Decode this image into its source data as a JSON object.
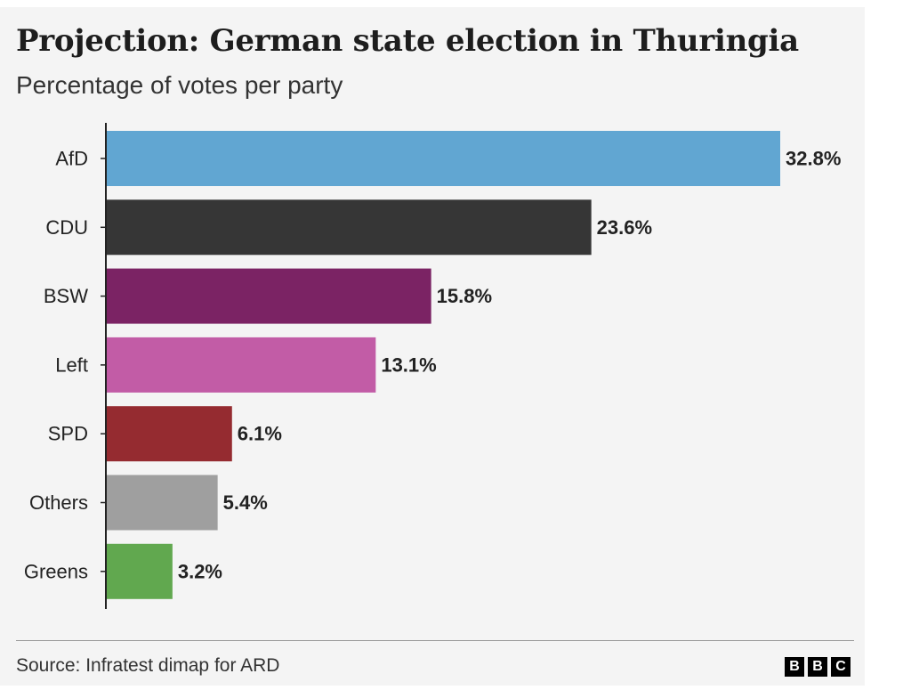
{
  "chart_data": {
    "type": "bar",
    "orientation": "horizontal",
    "title": "Projection: German state election in Thuringia",
    "subtitle": "Percentage of votes per party",
    "categories": [
      "AfD",
      "CDU",
      "BSW",
      "Left",
      "SPD",
      "Others",
      "Greens"
    ],
    "values": [
      32.8,
      23.6,
      15.8,
      13.1,
      6.1,
      5.4,
      3.2
    ],
    "value_labels": [
      "32.8%",
      "23.6%",
      "15.8%",
      "13.1%",
      "6.1%",
      "5.4%",
      "3.2%"
    ],
    "colors": [
      "#61a6d2",
      "#363636",
      "#7b2364",
      "#c25ca6",
      "#952b30",
      "#9f9f9f",
      "#61a84f"
    ],
    "xlim": [
      0,
      32.8
    ],
    "grid": false,
    "legend": "none"
  },
  "footer": {
    "source": "Source: Infratest dimap for ARD",
    "logo_letters": [
      "B",
      "B",
      "C"
    ]
  }
}
